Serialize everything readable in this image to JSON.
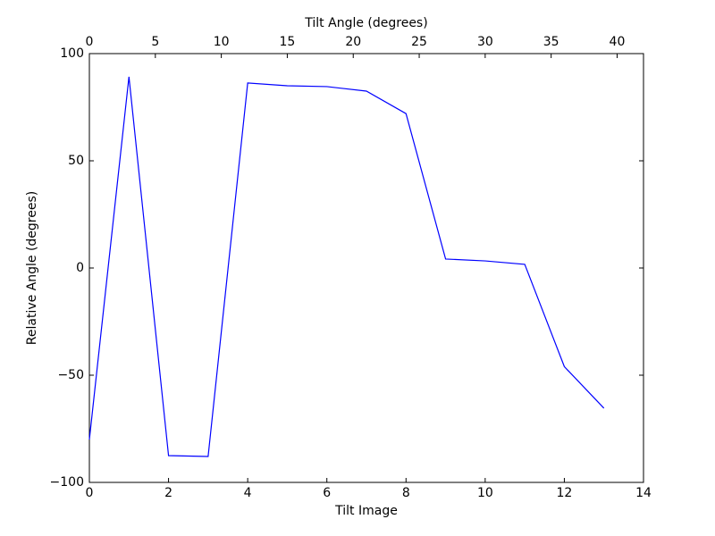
{
  "chart_data": {
    "type": "line",
    "xlabel": "Tilt Image",
    "ylabel": "Relative Angle (degrees)",
    "x2label": "Tilt Angle (degrees)",
    "x": [
      0,
      1,
      2,
      3,
      4,
      5,
      6,
      7,
      8,
      9,
      10,
      11,
      12,
      13
    ],
    "values": [
      -80,
      89.2,
      -87.5,
      -87.9,
      86.3,
      85,
      84.6,
      82.5,
      72,
      4.2,
      3.3,
      1.7,
      -46,
      -65.4
    ],
    "color": "#0000ff",
    "xlim": [
      0,
      14
    ],
    "xticks": [
      0,
      2,
      4,
      6,
      8,
      10,
      12,
      14
    ],
    "x2lim": [
      0,
      42
    ],
    "x2ticks": [
      0,
      5,
      10,
      15,
      20,
      25,
      30,
      35,
      40
    ],
    "ylim": [
      -100,
      100
    ],
    "yticks": [
      {
        "value": -100,
        "label": "−100"
      },
      {
        "value": -50,
        "label": "−50"
      },
      0,
      50,
      100
    ]
  }
}
